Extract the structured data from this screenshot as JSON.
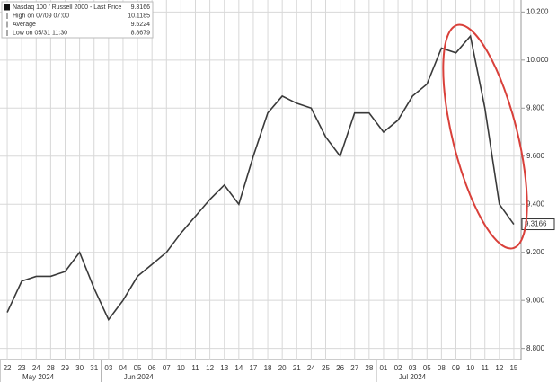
{
  "chart_data": {
    "type": "line",
    "legend": [
      {
        "label": "Nasdaq 100 / Russell 2000 - Last Price",
        "value": 9.3166
      },
      {
        "label": "High on 07/09 07:00",
        "value": 10.1185
      },
      {
        "label": "Average",
        "value": 9.5224
      },
      {
        "label": "Low on 05/31 11:30",
        "value": 8.8679
      }
    ],
    "categories": [
      "22",
      "23",
      "24",
      "28",
      "29",
      "30",
      "31",
      "03",
      "04",
      "05",
      "06",
      "07",
      "10",
      "11",
      "12",
      "13",
      "14",
      "17",
      "18",
      "20",
      "21",
      "24",
      "25",
      "26",
      "27",
      "28",
      "01",
      "02",
      "03",
      "05",
      "08",
      "09",
      "10",
      "11",
      "12",
      "15"
    ],
    "months": [
      {
        "label": "May 2024",
        "start": 0,
        "end": 6
      },
      {
        "label": "Jun 2024",
        "start": 7,
        "end": 25
      },
      {
        "label": "Jul 2024",
        "start": 26,
        "end": 35
      }
    ],
    "series": [
      {
        "name": "Nasdaq 100 / Russell 2000",
        "color": "#3a3a3a",
        "values": [
          8.95,
          9.08,
          9.1,
          9.1,
          9.12,
          9.2,
          9.05,
          8.92,
          9.0,
          9.1,
          9.15,
          9.2,
          9.28,
          9.35,
          9.42,
          9.48,
          9.4,
          9.6,
          9.78,
          9.85,
          9.82,
          9.8,
          9.68,
          9.6,
          9.78,
          9.78,
          9.7,
          9.75,
          9.85,
          9.9,
          10.05,
          10.03,
          10.1,
          9.8,
          9.4,
          9.3166
        ]
      }
    ],
    "ylim": [
      8.78,
      10.22
    ],
    "yticks": [
      {
        "value": 8.8,
        "label": "8.800"
      },
      {
        "value": 9.0,
        "label": "9.000"
      },
      {
        "value": 9.2,
        "label": "9.200"
      },
      {
        "value": 9.4,
        "label": "9.400"
      },
      {
        "value": 9.6,
        "label": "9.600"
      },
      {
        "value": 9.8,
        "label": "9.800"
      },
      {
        "value": 10.0,
        "label": "10.000"
      },
      {
        "value": 10.2,
        "label": "10.200"
      }
    ],
    "grid": true
  }
}
